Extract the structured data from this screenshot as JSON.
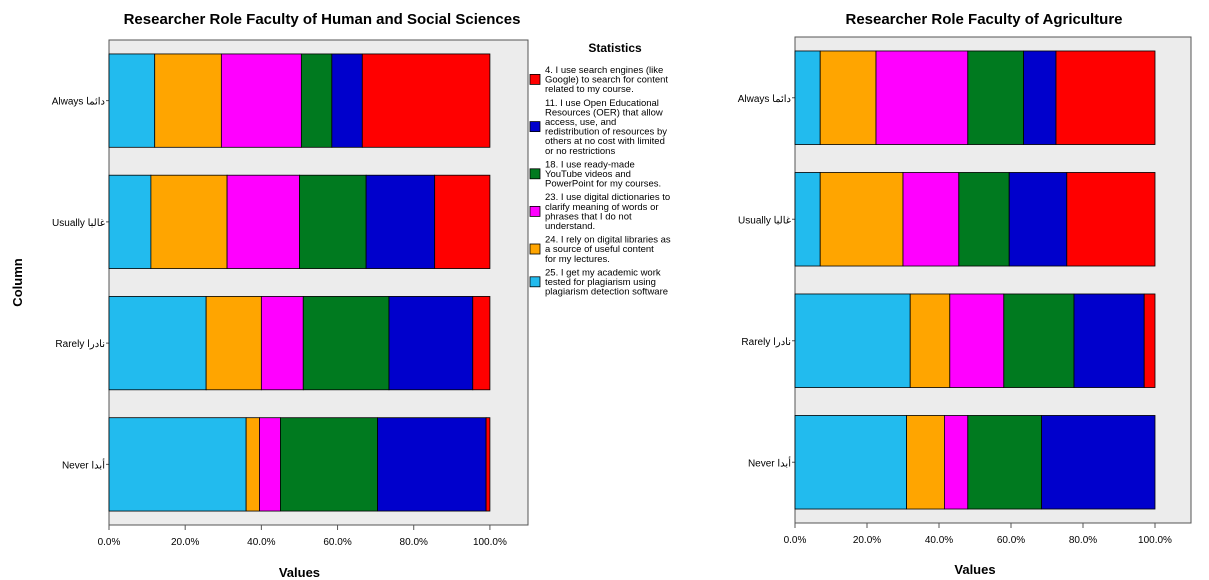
{
  "legend": {
    "title": "Statistics",
    "entries": [
      {
        "color": "#ff0000",
        "lines": [
          "4. I use search engines (like",
          "Google) to search for content",
          "related to my course."
        ]
      },
      {
        "color": "#0000cc",
        "lines": [
          "11. I use Open Educational",
          "Resources (OER) that allow",
          "access, use, and",
          "redistribution of resources by",
          "others at no cost with limited",
          "or no restrictions"
        ]
      },
      {
        "color": "#007a1f",
        "lines": [
          "18. I use ready-made",
          "YouTube videos and",
          "PowerPoint for my courses."
        ]
      },
      {
        "color": "#ff00ff",
        "lines": [
          "23. I use digital dictionaries to",
          "clarify  meaning of words or",
          "phrases that I do not",
          "understand."
        ]
      },
      {
        "color": "#ffa500",
        "lines": [
          "24. I rely on digital libraries as",
          "a source of useful content",
          "for my lectures."
        ]
      },
      {
        "color": "#22bbee",
        "lines": [
          "25. I get my academic work",
          "tested for plagiarism using",
          "plagiarism detection software"
        ]
      }
    ]
  },
  "chart_data": [
    {
      "type": "bar",
      "orientation": "horizontal",
      "stacked": true,
      "normalized": true,
      "title": "Researcher Role Faculty of Human and Social Sciences",
      "xlabel": "Values",
      "ylabel": "Column",
      "xlim": [
        0,
        100
      ],
      "xticks": [
        "0.0%",
        "20.0%",
        "40.0%",
        "60.0%",
        "80.0%",
        "100.0%"
      ],
      "categories": [
        "Always دائما",
        "Usually غالبا",
        "Rarely نادرا",
        "Never أبدا"
      ],
      "series": [
        {
          "name": "25. I get my academic work tested for plagiarism using plagiarism detection software",
          "color": "#22bbee",
          "values": [
            12,
            11,
            25.5,
            36
          ]
        },
        {
          "name": "24. I rely on digital libraries as a source of useful content for my lectures.",
          "color": "#ffa500",
          "values": [
            17.5,
            20,
            14.5,
            3.5
          ]
        },
        {
          "name": "23. I use digital dictionaries to clarify meaning of words or phrases that I do not understand.",
          "color": "#ff00ff",
          "values": [
            21,
            19,
            11,
            5.5
          ]
        },
        {
          "name": "18. I use ready-made YouTube videos and PowerPoint for my courses.",
          "color": "#007a1f",
          "values": [
            8,
            17.5,
            22.5,
            25.5
          ]
        },
        {
          "name": "11. I use Open Educational Resources (OER) that allow access, use, and redistribution of resources by others at no cost with limited or no restrictions",
          "color": "#0000cc",
          "values": [
            8,
            18,
            22,
            28.5
          ]
        },
        {
          "name": "4. I use search engines (like Google) to search for content related to my course.",
          "color": "#ff0000",
          "values": [
            33.5,
            14.5,
            4.5,
            1
          ]
        }
      ]
    },
    {
      "type": "bar",
      "orientation": "horizontal",
      "stacked": true,
      "normalized": true,
      "title": "Researcher Role Faculty of Agriculture",
      "xlabel": "Values",
      "ylabel": "",
      "xlim": [
        0,
        100
      ],
      "xticks": [
        "0.0%",
        "20.0%",
        "40.0%",
        "60.0%",
        "80.0%",
        "100.0%"
      ],
      "categories": [
        "Always دائما",
        "Usually غالبا",
        "Rarely نادرا",
        "Never أبدا"
      ],
      "series": [
        {
          "name": "25. I get my academic work tested for plagiarism using plagiarism detection software",
          "color": "#22bbee",
          "values": [
            7,
            7,
            32,
            31
          ]
        },
        {
          "name": "24. I rely on digital libraries as a source of useful content for my lectures.",
          "color": "#ffa500",
          "values": [
            15.5,
            23,
            11,
            10.5
          ]
        },
        {
          "name": "23. I use digital dictionaries to clarify meaning of words or phrases that I do not understand.",
          "color": "#ff00ff",
          "values": [
            25.5,
            15.5,
            15,
            6.5
          ]
        },
        {
          "name": "18. I use ready-made YouTube videos and PowerPoint for my courses.",
          "color": "#007a1f",
          "values": [
            15.5,
            14,
            19.5,
            20.5
          ]
        },
        {
          "name": "11. I use Open Educational Resources (OER) that allow access, use, and redistribution of resources by others at no cost with limited or no restrictions",
          "color": "#0000cc",
          "values": [
            9,
            16,
            19.5,
            31.5
          ]
        },
        {
          "name": "4. I use search engines (like Google) to search for content related to my course.",
          "color": "#ff0000",
          "values": [
            27.5,
            24.5,
            3,
            0
          ]
        }
      ]
    }
  ]
}
